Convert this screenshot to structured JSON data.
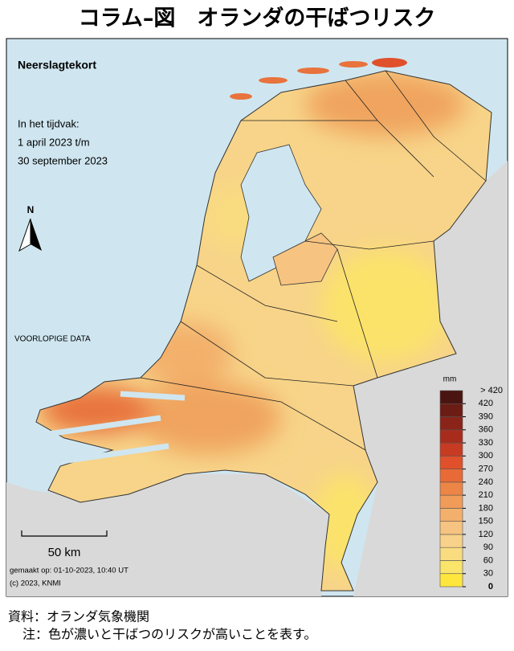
{
  "header": {
    "title": "コラム–図　オランダの干ばつリスク"
  },
  "map": {
    "title": "Neerslagtekort",
    "period": [
      "In het tijdvak:",
      "1 april 2023 t/m",
      "30 september 2023"
    ],
    "note": "VOORLOPIGE DATA",
    "north": "N",
    "scale_label": "50 km",
    "credits": [
      "gemaakt op: 01-10-2023, 10:40 UT",
      "(c) 2023, KNMI"
    ],
    "legend": {
      "unit": "mm",
      "ticks": [
        0,
        30,
        60,
        90,
        120,
        150,
        180,
        210,
        240,
        270,
        300,
        330,
        360,
        390,
        420
      ],
      "top_label": "> 420",
      "colors": [
        "#ffe63c",
        "#fbe46a",
        "#f9dc80",
        "#f8d18a",
        "#f6c381",
        "#f3b06c",
        "#f09b58",
        "#ec8546",
        "#e86a36",
        "#e0502a",
        "#c63b22",
        "#a82c1c",
        "#8a2418",
        "#6b1c14",
        "#4a1410"
      ]
    }
  },
  "footer": {
    "source": "資料：オランダ気象機関",
    "note": "注：色が濃いと干ばつのリスクが高いことを表す。"
  }
}
